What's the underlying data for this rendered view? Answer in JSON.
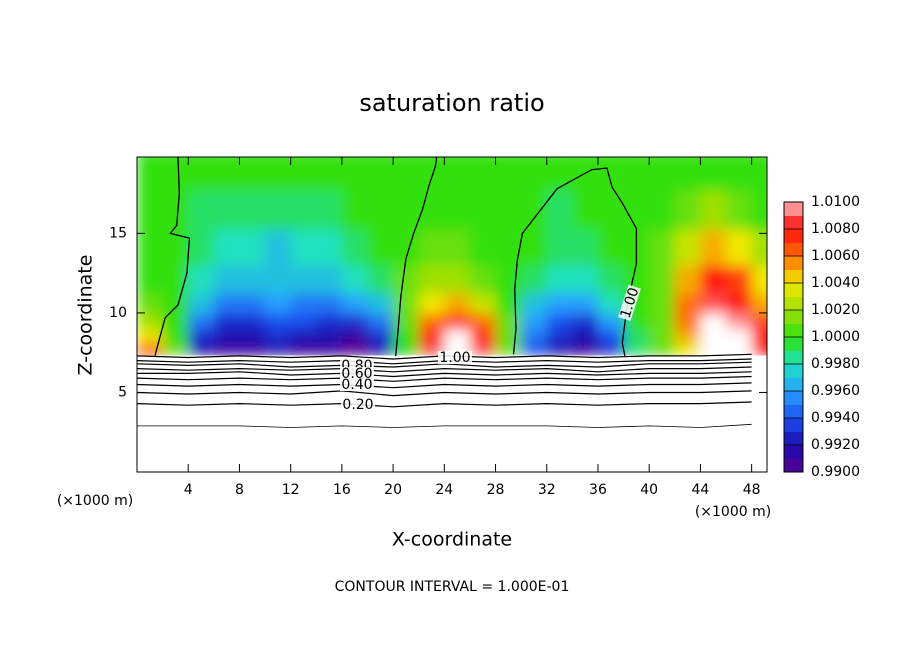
{
  "chart_data": {
    "type": "contour",
    "title": "saturation ratio",
    "x_label": "X-coordinate",
    "y_label": "Z-coordinate",
    "x_unit_labels": [
      "(×1000 m)",
      "(×1000 m)"
    ],
    "footnote": "CONTOUR INTERVAL = 1.000E-01",
    "xlim": [
      0,
      49.2
    ],
    "ylim": [
      0,
      19.8
    ],
    "xticks": [
      4,
      8,
      12,
      16,
      20,
      24,
      28,
      32,
      36,
      40,
      44,
      48
    ],
    "yticks": [
      5,
      10,
      15
    ],
    "field": {
      "x": [
        1,
        3,
        5,
        7,
        9,
        11,
        13,
        15,
        17,
        19,
        21,
        23,
        25,
        27,
        29,
        31,
        33,
        35,
        37,
        39,
        41,
        43,
        45,
        47,
        49
      ],
      "z": [
        7.75,
        8.5,
        9.5,
        10.5,
        12,
        14,
        16.5,
        19
      ],
      "values": [
        [
          1.007,
          1.001,
          0.992,
          0.991,
          0.991,
          0.992,
          0.991,
          0.991,
          0.99,
          0.992,
          1.0,
          1.009,
          1.011,
          1.009,
          1.001,
          0.994,
          0.992,
          0.991,
          0.993,
          0.999,
          1.001,
          1.004,
          1.011,
          1.011,
          1.008
        ],
        [
          1.004,
          1.0,
          0.993,
          0.992,
          0.992,
          0.993,
          0.992,
          0.992,
          0.991,
          0.993,
          1.0,
          1.008,
          1.011,
          1.008,
          1.001,
          0.995,
          0.993,
          0.992,
          0.994,
          0.999,
          1.001,
          1.005,
          1.011,
          1.011,
          1.008
        ],
        [
          1.002,
          1.0,
          0.995,
          0.993,
          0.993,
          0.994,
          0.994,
          0.993,
          0.993,
          0.995,
          1.001,
          1.006,
          1.008,
          1.006,
          1.001,
          0.996,
          0.994,
          0.993,
          0.996,
          1.0,
          1.001,
          1.006,
          1.011,
          1.01,
          1.007
        ],
        [
          1.001,
          1.0,
          0.997,
          0.995,
          0.995,
          0.996,
          0.995,
          0.995,
          0.996,
          0.997,
          1.001,
          1.004,
          1.005,
          1.003,
          1.0,
          0.997,
          0.996,
          0.996,
          0.998,
          1.0,
          1.001,
          1.006,
          1.009,
          1.008,
          1.005
        ],
        [
          1.0,
          1.0,
          0.998,
          0.997,
          0.997,
          0.997,
          0.997,
          0.997,
          0.998,
          0.999,
          1.001,
          1.002,
          1.002,
          1.001,
          1.0,
          0.999,
          0.998,
          0.998,
          0.999,
          1.0,
          1.001,
          1.005,
          1.008,
          1.007,
          1.004
        ],
        [
          1.0,
          1.0,
          0.999,
          0.998,
          0.998,
          0.997,
          0.998,
          0.998,
          0.999,
          1.0,
          1.0,
          1.001,
          1.001,
          1.0,
          1.0,
          1.0,
          0.999,
          0.999,
          1.0,
          1.0,
          1.001,
          1.003,
          1.005,
          1.004,
          1.002
        ],
        [
          1.0,
          1.0,
          0.999,
          0.999,
          0.999,
          0.999,
          0.999,
          0.999,
          1.0,
          1.0,
          1.0,
          1.0,
          1.0,
          1.0,
          1.0,
          1.0,
          0.999,
          1.0,
          1.0,
          1.0,
          1.0,
          1.001,
          1.002,
          1.001,
          1.0
        ],
        [
          1.0,
          1.0,
          1.0,
          1.0,
          1.0,
          1.0,
          1.0,
          1.0,
          1.0,
          1.0,
          1.0,
          1.0,
          1.0,
          1.0,
          1.0,
          1.0,
          1.0,
          1.0,
          1.0,
          1.0,
          1.0,
          1.0,
          1.0,
          1.0,
          1.0
        ]
      ]
    },
    "colorbar": {
      "ticks": [
        {
          "value": 0.99,
          "label": "0.9900"
        },
        {
          "value": 0.992,
          "label": "0.9920"
        },
        {
          "value": 0.994,
          "label": "0.9940"
        },
        {
          "value": 0.996,
          "label": "0.9960"
        },
        {
          "value": 0.998,
          "label": "0.9980"
        },
        {
          "value": 1.0,
          "label": "1.0000"
        },
        {
          "value": 1.002,
          "label": "1.0020"
        },
        {
          "value": 1.004,
          "label": "1.0040"
        },
        {
          "value": 1.006,
          "label": "1.0060"
        },
        {
          "value": 1.008,
          "label": "1.0080"
        },
        {
          "value": 1.01,
          "label": "1.0100"
        }
      ],
      "colors": [
        "#5a0090",
        "#1a0cb0",
        "#1e50f0",
        "#28a0ff",
        "#20e0c0",
        "#30e010",
        "#a0e000",
        "#f0e800",
        "#ff7000",
        "#ff1010",
        "#ff9090"
      ],
      "above_color": "#ffffff"
    },
    "contour_x": [
      0,
      4,
      8,
      12,
      16,
      20,
      24,
      28,
      32,
      36,
      40,
      44,
      48
    ],
    "contours": [
      {
        "z": [
          7.3,
          7.2,
          7.3,
          7.2,
          7.3,
          7.1,
          7.3,
          7.2,
          7.3,
          7.2,
          7.3,
          7.3,
          7.4
        ]
      },
      {
        "z": [
          7.0,
          6.9,
          7.0,
          6.9,
          7.0,
          6.8,
          7.0,
          6.9,
          7.0,
          6.9,
          7.0,
          7.0,
          7.1
        ]
      },
      {
        "z": [
          6.8,
          6.7,
          6.8,
          6.6,
          6.7,
          6.6,
          6.8,
          6.6,
          6.7,
          6.6,
          6.8,
          6.8,
          6.9
        ]
      },
      {
        "z": [
          6.5,
          6.4,
          6.5,
          6.4,
          6.5,
          6.3,
          6.5,
          6.4,
          6.5,
          6.3,
          6.5,
          6.5,
          6.6
        ]
      },
      {
        "z": [
          6.2,
          6.2,
          6.3,
          6.1,
          6.2,
          6.0,
          6.2,
          6.1,
          6.2,
          6.1,
          6.2,
          6.2,
          6.3
        ]
      },
      {
        "z": [
          5.9,
          5.8,
          5.9,
          5.8,
          5.9,
          5.7,
          5.9,
          5.8,
          5.9,
          5.8,
          5.9,
          5.9,
          6.0
        ]
      },
      {
        "z": [
          5.5,
          5.4,
          5.5,
          5.4,
          5.5,
          5.3,
          5.5,
          5.4,
          5.5,
          5.4,
          5.5,
          5.5,
          5.6
        ]
      },
      {
        "z": [
          5.0,
          4.9,
          5.0,
          4.9,
          5.1,
          4.8,
          5.0,
          4.9,
          5.0,
          4.9,
          5.0,
          5.0,
          5.1
        ]
      },
      {
        "z": [
          4.3,
          4.2,
          4.3,
          4.2,
          4.3,
          4.1,
          4.3,
          4.2,
          4.3,
          4.2,
          4.3,
          4.3,
          4.4
        ]
      },
      {
        "z": [
          2.9,
          2.9,
          2.9,
          2.8,
          2.9,
          2.8,
          2.9,
          2.9,
          2.9,
          2.8,
          2.9,
          2.8,
          3.0
        ]
      }
    ],
    "cloud_edges": [
      {
        "x": [
          3.2,
          3.3,
          3.1,
          2.6,
          4.1,
          3.9,
          3.2,
          2.2,
          1.8,
          1.4
        ],
        "z": [
          19.8,
          17.5,
          15.5,
          15.0,
          14.7,
          12.5,
          10.5,
          9.7,
          8.5,
          7.3
        ]
      },
      {
        "x": [
          20.2,
          20.4,
          20.6,
          21.0,
          21.6,
          22.3,
          22.8,
          23.3,
          23.4
        ],
        "z": [
          7.3,
          9.0,
          11.0,
          13.4,
          15.0,
          16.5,
          18.0,
          19.2,
          19.8
        ]
      },
      {
        "x": [
          29.4,
          29.6,
          29.5,
          29.7,
          30.1,
          32.8,
          35.5,
          36.7,
          37.1,
          37.9,
          39.0,
          39.0,
          38.3,
          37.9,
          38.1
        ],
        "z": [
          7.4,
          9.0,
          11.5,
          13.3,
          15.0,
          17.8,
          19.0,
          19.1,
          17.9,
          16.9,
          15.3,
          13.1,
          10.6,
          8.1,
          7.3
        ]
      }
    ],
    "contour_labels": [
      "1.00",
      "1.00",
      "0.80",
      "0.60",
      "0.40",
      "0.20"
    ]
  }
}
